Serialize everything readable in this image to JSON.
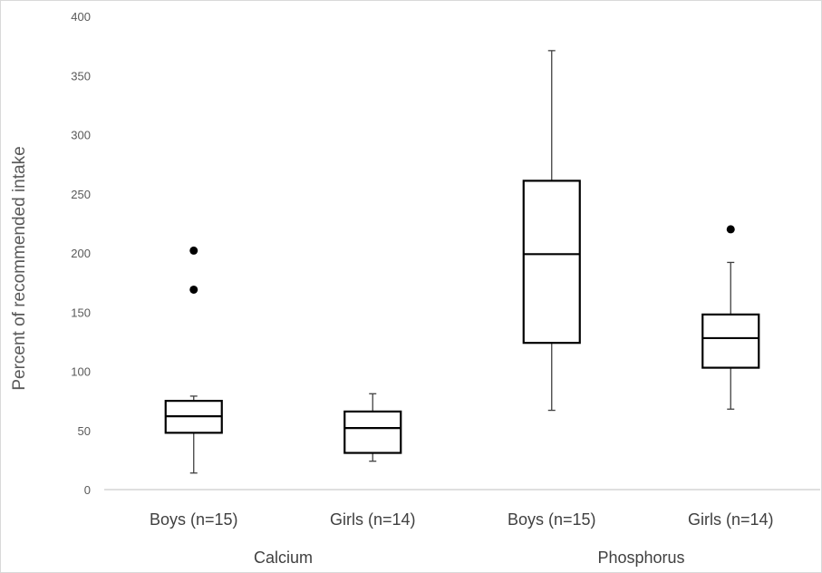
{
  "chart_data": {
    "type": "boxplot",
    "title": "",
    "ylabel": "Percent of recommended intake",
    "xlabel": "",
    "ylim": [
      0,
      400
    ],
    "yticks": [
      0,
      50,
      100,
      150,
      200,
      250,
      300,
      350,
      400
    ],
    "grid": false,
    "legend": "none",
    "categories": [
      "Boys (n=15)",
      "Girls (n=14)",
      "Boys (n=15)",
      "Girls (n=14)"
    ],
    "groups": [
      {
        "label": "Calcium",
        "members": [
          0,
          1
        ]
      },
      {
        "label": "Phosphorus",
        "members": [
          2,
          3
        ]
      }
    ],
    "boxes": [
      {
        "category": "Boys (n=15)",
        "group": "Calcium",
        "whisker_low": 14,
        "q1": 48,
        "median": 62,
        "q3": 75,
        "whisker_high": 79,
        "outliers": [
          169,
          202
        ]
      },
      {
        "category": "Girls (n=14)",
        "group": "Calcium",
        "whisker_low": 24,
        "q1": 31,
        "median": 52,
        "q3": 66,
        "whisker_high": 81,
        "outliers": []
      },
      {
        "category": "Boys (n=15)",
        "group": "Phosphorus",
        "whisker_low": 67,
        "q1": 124,
        "median": 199,
        "q3": 261,
        "whisker_high": 371,
        "outliers": []
      },
      {
        "category": "Girls (n=14)",
        "group": "Phosphorus",
        "whisker_low": 68,
        "q1": 103,
        "median": 128,
        "q3": 148,
        "whisker_high": 192,
        "outliers": [
          220
        ]
      }
    ],
    "colors": {
      "box_stroke": "#000000",
      "box_fill": "#ffffff",
      "whisker": "#404040",
      "outlier": "#000000",
      "axis": "#bfbfbf",
      "tick_text": "#595959",
      "label_text": "#404040"
    }
  }
}
